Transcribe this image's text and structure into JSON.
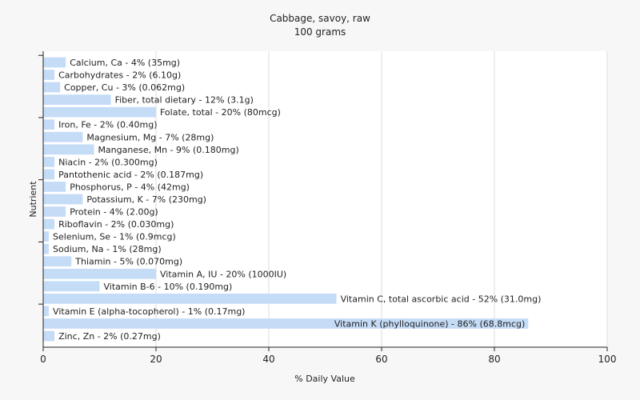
{
  "chart_data": {
    "type": "bar",
    "orientation": "horizontal",
    "title": "Cabbage, savoy, raw",
    "subtitle": "100 grams",
    "xlabel": "% Daily Value",
    "ylabel": "Nutrient",
    "xlim": [
      0,
      100
    ],
    "x_ticks": [
      0,
      20,
      40,
      60,
      80,
      100
    ],
    "grid": true,
    "bar_color": "#c5dcf7",
    "categories": [
      "Calcium, Ca",
      "Carbohydrates",
      "Copper, Cu",
      "Fiber, total dietary",
      "Folate, total",
      "Iron, Fe",
      "Magnesium, Mg",
      "Manganese, Mn",
      "Niacin",
      "Pantothenic acid",
      "Phosphorus, P",
      "Potassium, K",
      "Protein",
      "Riboflavin",
      "Selenium, Se",
      "Sodium, Na",
      "Thiamin",
      "Vitamin A, IU",
      "Vitamin B-6",
      "Vitamin C, total ascorbic acid",
      "Vitamin E (alpha-tocopherol)",
      "Vitamin K (phylloquinone)",
      "Zinc, Zn"
    ],
    "values": [
      4,
      2,
      3,
      12,
      20,
      2,
      7,
      9,
      2,
      2,
      4,
      7,
      4,
      2,
      1,
      1,
      5,
      20,
      10,
      52,
      1,
      86,
      2
    ],
    "data_labels": [
      "Calcium, Ca - 4% (35mg)",
      "Carbohydrates - 2% (6.10g)",
      "Copper, Cu - 3% (0.062mg)",
      "Fiber, total dietary - 12% (3.1g)",
      "Folate, total - 20% (80mcg)",
      "Iron, Fe - 2% (0.40mg)",
      "Magnesium, Mg - 7% (28mg)",
      "Manganese, Mn - 9% (0.180mg)",
      "Niacin - 2% (0.300mg)",
      "Pantothenic acid - 2% (0.187mg)",
      "Phosphorus, P - 4% (42mg)",
      "Potassium, K - 7% (230mg)",
      "Protein - 4% (2.00g)",
      "Riboflavin - 2% (0.030mg)",
      "Selenium, Se - 1% (0.9mcg)",
      "Sodium, Na - 1% (28mg)",
      "Thiamin - 5% (0.070mg)",
      "Vitamin A, IU - 20% (1000IU)",
      "Vitamin B-6 - 10% (0.190mg)",
      "Vitamin C, total ascorbic acid - 52% (31.0mg)",
      "Vitamin E (alpha-tocopherol) - 1% (0.17mg)",
      "Vitamin K (phylloquinone) - 86% (68.8mcg)",
      "Zinc, Zn - 2% (0.27mg)"
    ]
  }
}
